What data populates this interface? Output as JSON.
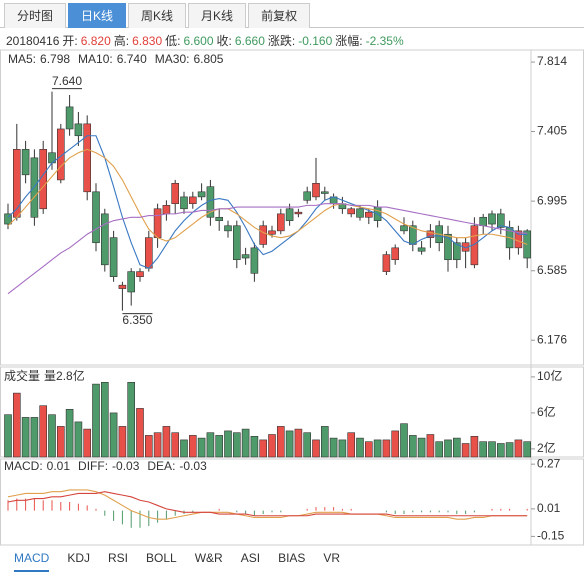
{
  "tabs": [
    "分时图",
    "日K线",
    "周K线",
    "月K线",
    "前复权"
  ],
  "active_tab": 1,
  "header": {
    "date": "20180416",
    "fields": [
      {
        "label": "开:",
        "value": "6.820",
        "color": "#e0403a"
      },
      {
        "label": "高:",
        "value": "6.830",
        "color": "#e0403a"
      },
      {
        "label": "低:",
        "value": "6.600",
        "color": "#3f9a5e"
      },
      {
        "label": "收:",
        "value": "6.660",
        "color": "#3f9a5e"
      },
      {
        "label": "涨跌:",
        "value": "-0.160",
        "color": "#3f9a5e"
      },
      {
        "label": "涨幅:",
        "value": "-2.35%",
        "color": "#3f9a5e"
      }
    ]
  },
  "chart_data": [
    {
      "type": "candlestick",
      "up_color": "#e8514a",
      "down_color": "#4e9a6a",
      "open": [
        6.92,
        6.9,
        7.3,
        7.25,
        6.95,
        7.28,
        7.12,
        7.55,
        7.45,
        7.05,
        7.05,
        6.92,
        6.78,
        6.48,
        6.58,
        6.55,
        6.6,
        6.78,
        6.92,
        6.98,
        7.02,
        6.98,
        7.05,
        7.08,
        6.9,
        6.85,
        6.85,
        6.68,
        6.72,
        6.74,
        6.8,
        6.82,
        6.95,
        6.92,
        7.05,
        7.02,
        7.05,
        7.02,
        6.98,
        6.92,
        6.95,
        6.9,
        6.96,
        6.58,
        6.65,
        6.85,
        6.85,
        6.72,
        6.78,
        6.85,
        6.8,
        6.75,
        6.7,
        6.62,
        6.9,
        6.92,
        6.92,
        6.84,
        6.72,
        6.82
      ],
      "high": [
        6.98,
        7.45,
        7.35,
        7.3,
        7.35,
        7.64,
        7.45,
        7.62,
        7.52,
        7.5,
        7.1,
        6.95,
        6.82,
        6.52,
        6.6,
        6.6,
        6.82,
        6.98,
        7.0,
        7.12,
        7.05,
        7.05,
        7.1,
        7.12,
        6.95,
        6.88,
        6.88,
        6.72,
        6.75,
        6.88,
        6.85,
        6.95,
        6.98,
        6.95,
        7.08,
        7.25,
        7.08,
        7.04,
        7.02,
        6.96,
        6.97,
        6.95,
        7.0,
        6.7,
        6.74,
        6.9,
        6.88,
        6.76,
        6.86,
        6.88,
        6.85,
        6.78,
        6.78,
        6.9,
        6.92,
        6.94,
        6.95,
        6.88,
        6.85,
        6.83
      ],
      "low": [
        6.83,
        6.88,
        7.1,
        6.85,
        6.92,
        7.18,
        7.1,
        7.38,
        7.32,
        7.0,
        6.7,
        6.58,
        6.52,
        6.35,
        6.38,
        6.52,
        6.58,
        6.72,
        6.88,
        6.92,
        6.92,
        6.95,
        7.0,
        6.85,
        6.82,
        6.78,
        6.6,
        6.62,
        6.52,
        6.72,
        6.78,
        6.8,
        6.85,
        6.9,
        6.98,
        7.0,
        7.0,
        6.95,
        6.92,
        6.9,
        6.88,
        6.86,
        6.84,
        6.56,
        6.62,
        6.8,
        6.7,
        6.68,
        6.72,
        6.7,
        6.58,
        6.6,
        6.6,
        6.6,
        6.8,
        6.82,
        6.8,
        6.65,
        6.68,
        6.6
      ],
      "close": [
        6.86,
        7.3,
        7.15,
        6.9,
        7.3,
        7.22,
        7.42,
        7.42,
        7.38,
        7.45,
        6.75,
        6.62,
        6.55,
        6.5,
        6.46,
        6.58,
        6.78,
        6.95,
        6.97,
        7.1,
        6.95,
        7.02,
        7.02,
        6.9,
        6.88,
        6.82,
        6.65,
        6.66,
        6.57,
        6.85,
        6.82,
        6.92,
        6.88,
        6.93,
        7.0,
        7.1,
        7.04,
        6.98,
        6.95,
        6.95,
        6.9,
        6.93,
        6.88,
        6.68,
        6.72,
        6.82,
        6.74,
        6.7,
        6.82,
        6.75,
        6.65,
        6.65,
        6.75,
        6.85,
        6.85,
        6.86,
        6.84,
        6.72,
        6.82,
        6.66
      ],
      "series": [
        {
          "name": "MA5:",
          "value_label": "6.798",
          "color": "#3a78c2",
          "values": [
            6.9,
            6.95,
            7.02,
            7.08,
            7.15,
            7.22,
            7.26,
            7.3,
            7.34,
            7.38,
            7.38,
            7.25,
            7.08,
            6.9,
            6.75,
            6.62,
            6.6,
            6.66,
            6.74,
            6.82,
            6.88,
            6.93,
            6.97,
            7.0,
            7.01,
            7.0,
            6.93,
            6.84,
            6.74,
            6.68,
            6.7,
            6.74,
            6.78,
            6.82,
            6.88,
            6.95,
            7.0,
            7.02,
            7.0,
            6.98,
            6.96,
            6.94,
            6.92,
            6.88,
            6.82,
            6.76,
            6.74,
            6.77,
            6.79,
            6.79,
            6.78,
            6.74,
            6.72,
            6.74,
            6.78,
            6.82,
            6.85,
            6.84,
            6.8,
            6.798
          ]
        },
        {
          "name": "MA10:",
          "value_label": "6.740",
          "color": "#e0a04c",
          "values": [
            6.85,
            6.9,
            6.96,
            7.02,
            7.08,
            7.14,
            7.2,
            7.25,
            7.28,
            7.3,
            7.28,
            7.25,
            7.2,
            7.12,
            7.02,
            6.92,
            6.83,
            6.78,
            6.76,
            6.78,
            6.82,
            6.86,
            6.9,
            6.93,
            6.95,
            6.95,
            6.92,
            6.88,
            6.84,
            6.81,
            6.79,
            6.78,
            6.79,
            6.82,
            6.86,
            6.9,
            6.94,
            6.97,
            6.98,
            6.97,
            6.96,
            6.95,
            6.94,
            6.92,
            6.89,
            6.86,
            6.84,
            6.82,
            6.81,
            6.8,
            6.79,
            6.78,
            6.78,
            6.79,
            6.8,
            6.8,
            6.79,
            6.78,
            6.76,
            6.74
          ]
        },
        {
          "name": "MA30:",
          "value_label": "6.805",
          "color": "#a66fc4",
          "values": [
            6.45,
            6.49,
            6.53,
            6.57,
            6.61,
            6.65,
            6.69,
            6.72,
            6.76,
            6.8,
            6.83,
            6.86,
            6.88,
            6.89,
            6.9,
            6.9,
            6.91,
            6.91,
            6.92,
            6.92,
            6.93,
            6.93,
            6.94,
            6.94,
            6.95,
            6.95,
            6.96,
            6.96,
            6.96,
            6.96,
            6.96,
            6.96,
            6.96,
            6.96,
            6.97,
            6.97,
            6.98,
            6.98,
            6.98,
            6.97,
            6.97,
            6.97,
            6.96,
            6.96,
            6.95,
            6.94,
            6.93,
            6.92,
            6.91,
            6.9,
            6.89,
            6.88,
            6.87,
            6.86,
            6.85,
            6.84,
            6.83,
            6.82,
            6.81,
            6.805
          ]
        }
      ],
      "annotations": [
        {
          "value": 7.64,
          "label": "7.640"
        },
        {
          "value": 6.35,
          "label": "6.350"
        }
      ],
      "ylim": [
        6.03,
        7.885
      ],
      "yticks": [
        {
          "value": 7.814,
          "label": "7.814"
        },
        {
          "value": 7.405,
          "label": "7.405"
        },
        {
          "value": 6.995,
          "label": "6.995"
        },
        {
          "value": 6.585,
          "label": "6.585"
        },
        {
          "value": 6.176,
          "label": "6.176"
        }
      ]
    },
    {
      "type": "bar",
      "title": "成交量",
      "subtitle": "量2.8亿",
      "values": [
        5.8,
        8.2,
        5.5,
        5.5,
        6.8,
        5.8,
        4.5,
        6.4,
        5.0,
        4.2,
        9.2,
        9.4,
        6.0,
        4.5,
        9.4,
        6.5,
        3.5,
        3.8,
        4.5,
        3.8,
        3.0,
        3.5,
        3.2,
        3.8,
        3.5,
        4.0,
        3.8,
        4.2,
        3.4,
        3.0,
        3.6,
        4.5,
        4.0,
        4.2,
        3.8,
        3.0,
        4.5,
        3.2,
        3.0,
        3.8,
        3.2,
        2.8,
        3.0,
        3.0,
        4.0,
        4.8,
        3.5,
        3.2,
        3.6,
        2.8,
        3.0,
        3.2,
        2.6,
        3.4,
        2.8,
        2.8,
        2.6,
        2.7,
        3.0,
        2.8
      ],
      "ylim": [
        1.1,
        11.1
      ],
      "yticks": [
        {
          "value": 10,
          "label": "10亿"
        },
        {
          "value": 6,
          "label": "6亿"
        },
        {
          "value": 2,
          "label": "2亿"
        }
      ]
    },
    {
      "type": "macd",
      "up_color": "#e8514a",
      "down_color": "#4e9a6a",
      "series": [
        {
          "name": "MACD:",
          "value_label": "0.01",
          "color": "#333333",
          "values": [
            0.06,
            0.07,
            0.07,
            0.07,
            0.06,
            0.06,
            0.05,
            0.05,
            0.04,
            0.03,
            0.01,
            -0.03,
            -0.06,
            -0.08,
            -0.1,
            -0.1,
            -0.09,
            -0.07,
            -0.05,
            -0.03,
            -0.02,
            -0.01,
            0.0,
            0.0,
            0.01,
            0.0,
            -0.01,
            -0.02,
            -0.03,
            -0.02,
            -0.01,
            -0.01,
            0.0,
            0.0,
            0.01,
            0.02,
            0.02,
            0.02,
            0.01,
            0.01,
            0.0,
            0.0,
            0.0,
            -0.01,
            -0.02,
            -0.02,
            -0.01,
            -0.01,
            -0.01,
            -0.01,
            -0.01,
            -0.02,
            -0.02,
            -0.01,
            0.0,
            0.01,
            0.01,
            0.01,
            0.0,
            0.01
          ]
        },
        {
          "name": "DIFF:",
          "value_label": "-0.03",
          "color": "#e0a04c",
          "values": [
            0.08,
            0.09,
            0.1,
            0.1,
            0.1,
            0.11,
            0.11,
            0.12,
            0.12,
            0.12,
            0.11,
            0.09,
            0.06,
            0.03,
            0.0,
            -0.02,
            -0.04,
            -0.05,
            -0.05,
            -0.04,
            -0.03,
            -0.02,
            -0.01,
            -0.01,
            -0.01,
            -0.01,
            -0.02,
            -0.03,
            -0.04,
            -0.04,
            -0.04,
            -0.04,
            -0.03,
            -0.03,
            -0.02,
            -0.01,
            -0.01,
            -0.01,
            -0.01,
            -0.02,
            -0.02,
            -0.02,
            -0.02,
            -0.03,
            -0.04,
            -0.04,
            -0.04,
            -0.04,
            -0.04,
            -0.04,
            -0.04,
            -0.05,
            -0.05,
            -0.04,
            -0.04,
            -0.03,
            -0.03,
            -0.03,
            -0.03,
            -0.03
          ]
        },
        {
          "name": "DEA:",
          "value_label": "-0.03",
          "color": "#d6453d",
          "values": [
            0.05,
            0.06,
            0.06,
            0.07,
            0.07,
            0.08,
            0.08,
            0.09,
            0.1,
            0.1,
            0.1,
            0.11,
            0.1,
            0.09,
            0.08,
            0.06,
            0.05,
            0.03,
            0.01,
            0.0,
            -0.01,
            -0.01,
            -0.01,
            -0.01,
            -0.02,
            -0.02,
            -0.02,
            -0.02,
            -0.03,
            -0.03,
            -0.03,
            -0.03,
            -0.03,
            -0.03,
            -0.03,
            -0.02,
            -0.02,
            -0.02,
            -0.02,
            -0.02,
            -0.02,
            -0.02,
            -0.02,
            -0.02,
            -0.03,
            -0.03,
            -0.03,
            -0.03,
            -0.03,
            -0.03,
            -0.03,
            -0.03,
            -0.03,
            -0.03,
            -0.03,
            -0.03,
            -0.03,
            -0.03,
            -0.03,
            -0.03
          ]
        }
      ],
      "ylim": [
        -0.2,
        0.3
      ],
      "yticks": [
        0.27,
        0.01,
        -0.15
      ]
    }
  ],
  "indicator_tabs": [
    "MACD",
    "KDJ",
    "RSI",
    "BOLL",
    "W&R",
    "ASI",
    "BIAS",
    "VR"
  ],
  "active_indicator": 0
}
